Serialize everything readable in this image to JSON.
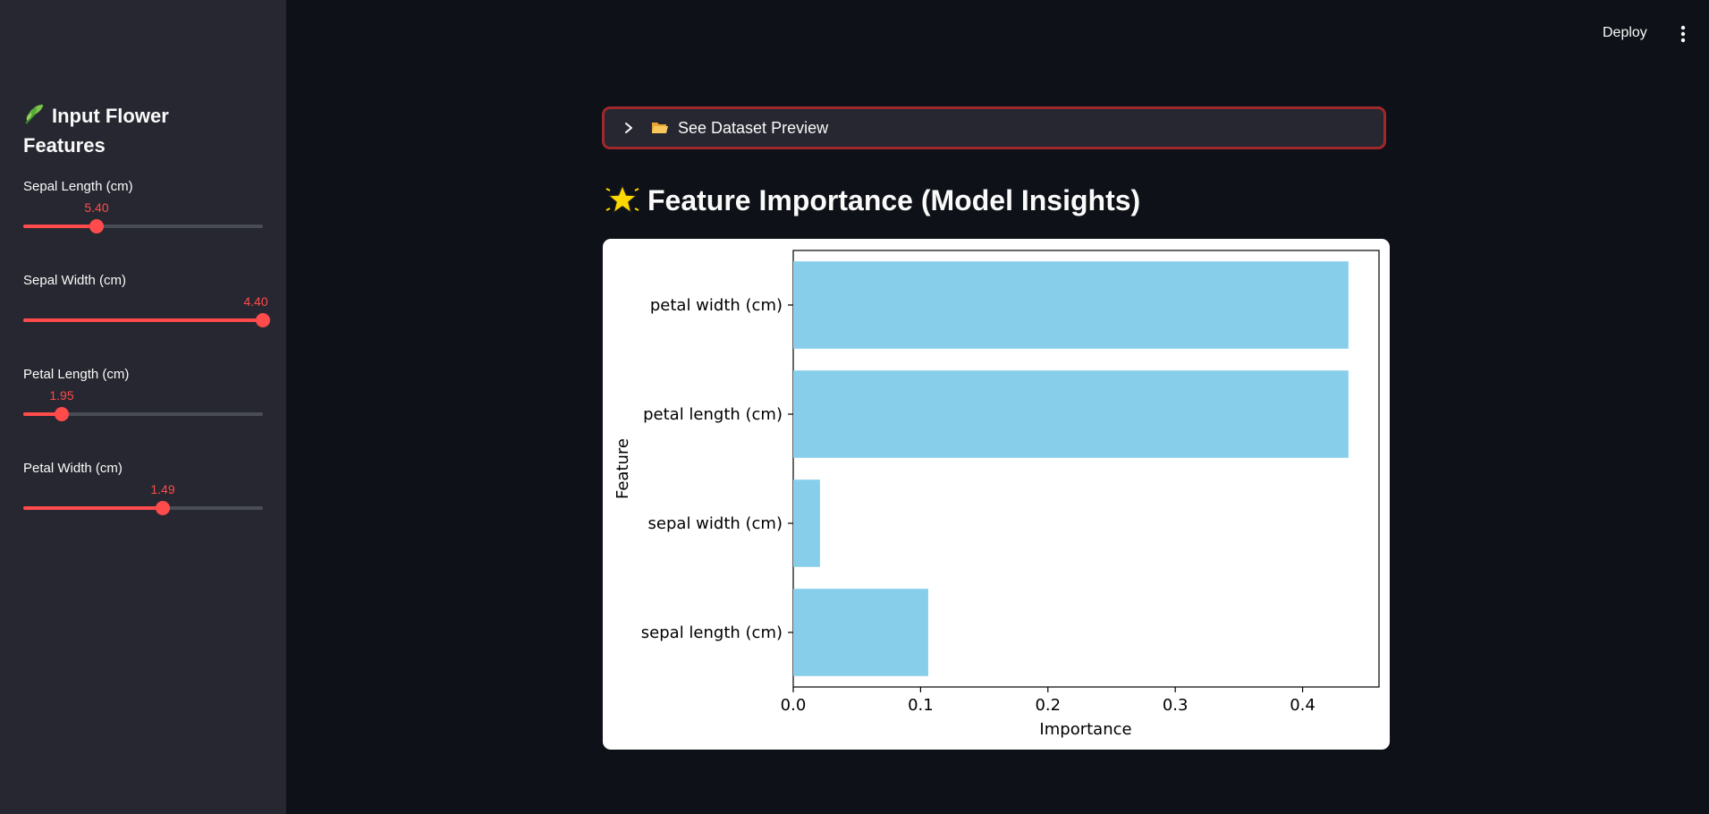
{
  "sidebar": {
    "title": "Input Flower Features",
    "title_icon": "leaf-icon",
    "sliders": [
      {
        "label": "Sepal Length (cm)",
        "value": "5.40",
        "fraction": 0.308
      },
      {
        "label": "Sepal Width (cm)",
        "value": "4.40",
        "fraction": 1.0
      },
      {
        "label": "Petal Length (cm)",
        "value": "1.95",
        "fraction": 0.16
      },
      {
        "label": "Petal Width (cm)",
        "value": "1.49",
        "fraction": 0.58
      }
    ],
    "slider_color": "#ff4b4b"
  },
  "header": {
    "deploy_label": "Deploy",
    "menu_icon": "kebab-menu-icon"
  },
  "expander": {
    "label": "See Dataset Preview",
    "icon": "folder-icon",
    "border_color": "#a0282c"
  },
  "section": {
    "title": "Feature Importance (Model Insights)",
    "icon": "star-icon"
  },
  "chart_data": {
    "type": "bar",
    "orientation": "horizontal",
    "categories": [
      "petal width (cm)",
      "petal length (cm)",
      "sepal width (cm)",
      "sepal length (cm)"
    ],
    "values": [
      0.436,
      0.436,
      0.021,
      0.106
    ],
    "xlabel": "Importance",
    "ylabel": "Feature",
    "xlim": [
      0,
      0.46
    ],
    "xticks": [
      "0.0",
      "0.1",
      "0.2",
      "0.3",
      "0.4"
    ],
    "bar_color": "#87ceeb",
    "grid": false
  }
}
